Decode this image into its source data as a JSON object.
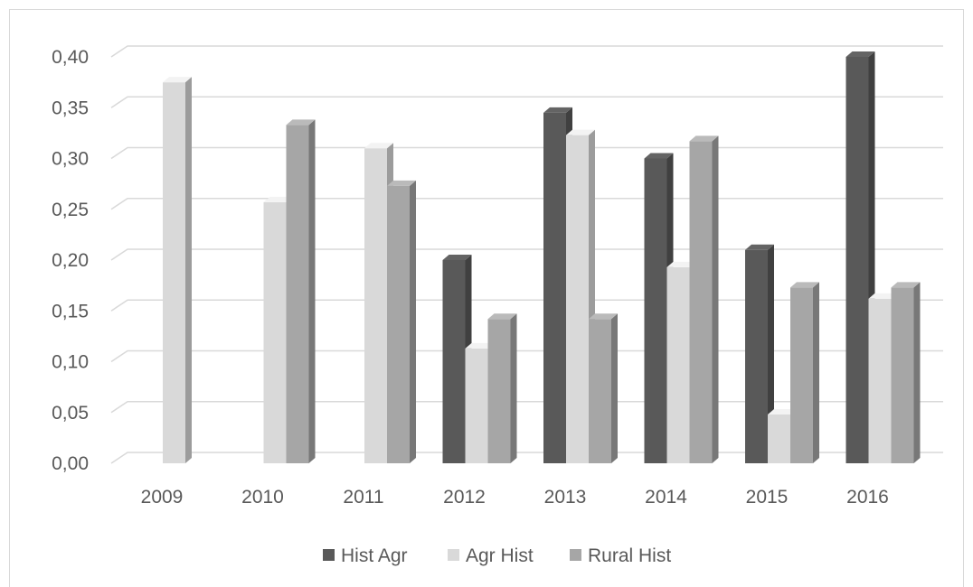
{
  "chart_data": {
    "type": "bar",
    "title": "",
    "xlabel": "",
    "ylabel": "",
    "categories": [
      "2009",
      "2010",
      "2011",
      "2012",
      "2013",
      "2014",
      "2015",
      "2016"
    ],
    "series": [
      {
        "name": "Hist Agr",
        "color": "#595959",
        "values": [
          null,
          null,
          null,
          0.2,
          0.345,
          0.3,
          0.21,
          0.4
        ]
      },
      {
        "name": "Agr Hist",
        "color": "#d9d9d9",
        "values": [
          0.375,
          0.257,
          0.31,
          0.113,
          0.323,
          0.193,
          0.048,
          0.162
        ]
      },
      {
        "name": "Rural Hist",
        "color": "#a6a6a6",
        "values": [
          null,
          0.333,
          0.273,
          0.142,
          0.142,
          0.317,
          0.173,
          0.173
        ]
      }
    ],
    "yticks": [
      "0,00",
      "0,05",
      "0,10",
      "0,15",
      "0,20",
      "0,25",
      "0,30",
      "0,35",
      "0,40"
    ],
    "ylim": [
      0,
      0.4
    ],
    "grid": true,
    "legend_position": "bottom",
    "style": "3d-clustered-column"
  }
}
